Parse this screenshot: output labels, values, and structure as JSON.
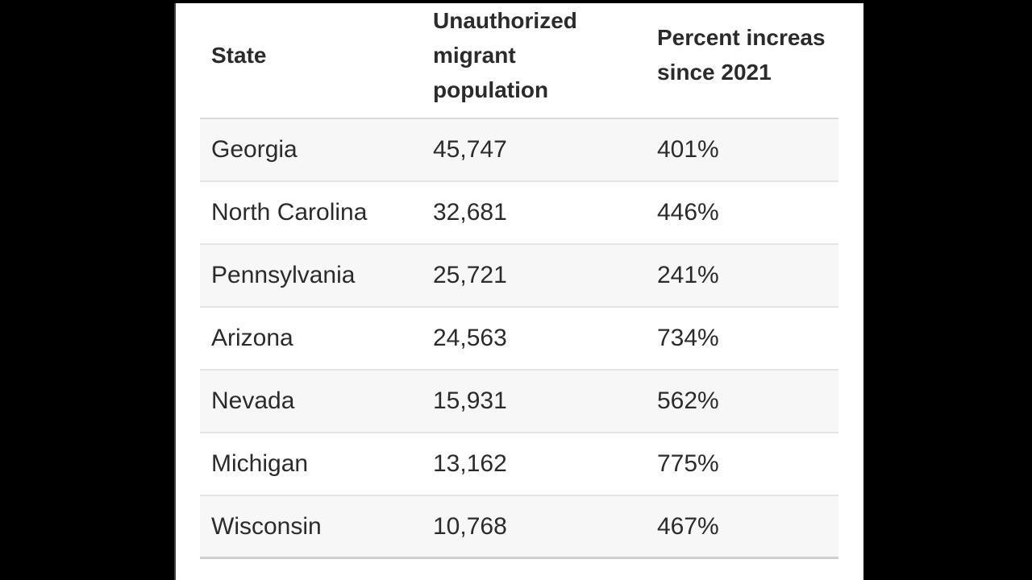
{
  "table": {
    "header": {
      "state_lines": [
        "State"
      ],
      "population_lines": [
        "Unauthorized",
        "migrant",
        "population"
      ],
      "percent_lines": [
        "Percent increas",
        "since 2021"
      ]
    }
  },
  "chart_data": {
    "type": "table",
    "columns": [
      "State",
      "Unauthorized migrant population",
      "Percent increas since 2021"
    ],
    "rows": [
      {
        "state": "Georgia",
        "population": "45,747",
        "percent": "401%"
      },
      {
        "state": "North Carolina",
        "population": "32,681",
        "percent": "446%"
      },
      {
        "state": "Pennsylvania",
        "population": "25,721",
        "percent": "241%"
      },
      {
        "state": "Arizona",
        "population": "24,563",
        "percent": "734%"
      },
      {
        "state": "Nevada",
        "population": "15,931",
        "percent": "562%"
      },
      {
        "state": "Michigan",
        "population": "13,162",
        "percent": "775%"
      },
      {
        "state": "Wisconsin",
        "population": "10,768",
        "percent": "467%"
      }
    ],
    "population_values": [
      45747,
      32681,
      25721,
      24563,
      15931,
      13162,
      10768
    ],
    "percent_values": [
      401,
      446,
      241,
      734,
      562,
      775,
      467
    ],
    "layout": {
      "row_striping": "odd-rows-shaded",
      "alignment": "left"
    }
  },
  "colors": {
    "letterbox": "#000000",
    "panel_bg": "#ffffff",
    "panel_edge": "#3f3f3f",
    "row_shade": "#f7f7f7",
    "row_border": "#e4e4e4",
    "header_border": "#d9d9d9",
    "bottom_border": "#cfcfcf",
    "text": "#2b2b2b"
  }
}
